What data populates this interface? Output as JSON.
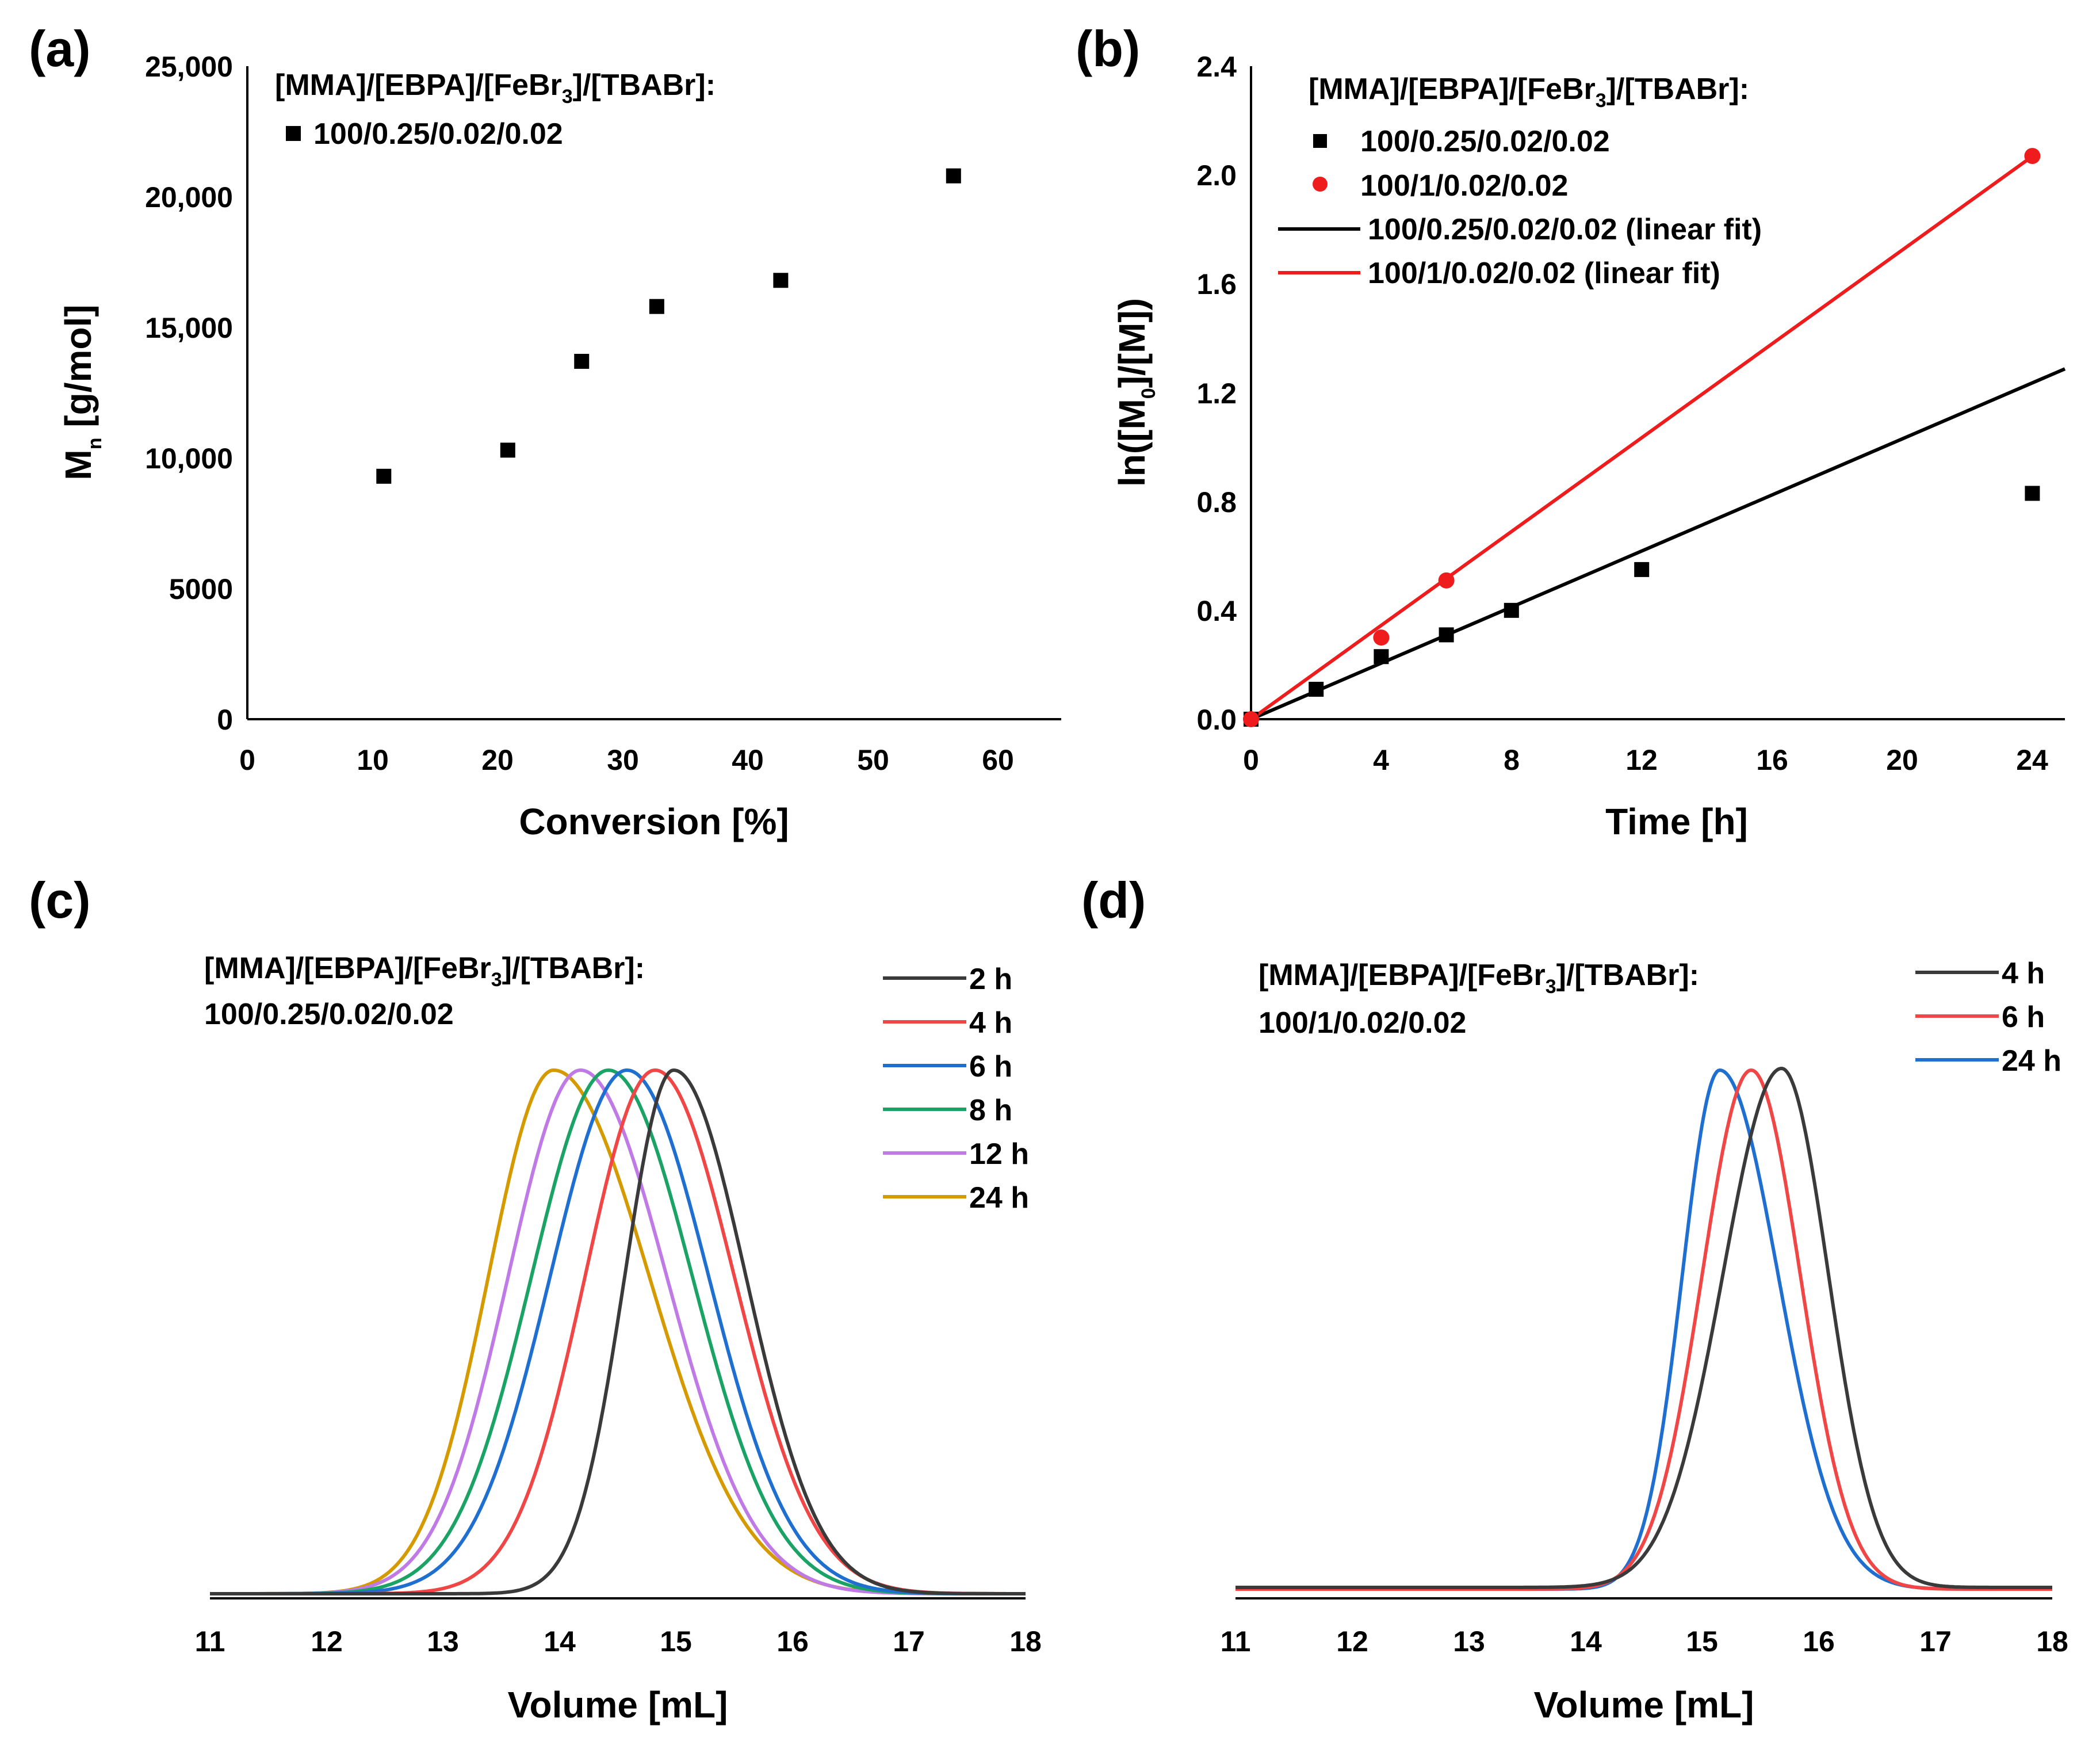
{
  "colors": {
    "black": "#000000",
    "red": "#ee1c1c",
    "c_black": "#3a3a3a",
    "c_red": "#f04646",
    "c_blue": "#1f6fd1",
    "c_green": "#1aa364",
    "c_violet": "#c07ae6",
    "c_gold": "#d49a00"
  },
  "chart_data": [
    {
      "id": "a",
      "panel_label": "(a)",
      "type": "scatter",
      "xlabel": "Conversion [%]",
      "ylabel": "Mn [g/mol]",
      "xlim": [
        0,
        65
      ],
      "ylim": [
        0,
        25000
      ],
      "xticks": [
        "0",
        "10",
        "20",
        "30",
        "40",
        "50",
        "60"
      ],
      "yticks": [
        "0",
        "5000",
        "10,000",
        "15,000",
        "20,000",
        "25,000"
      ],
      "legend_title": "[MMA]/[EBPA]/[FeBr3]/[TBABr]:",
      "series": [
        {
          "name": "100/0.25/0.02/0.02",
          "marker": "square",
          "x": [
            10.9,
            20.8,
            26.7,
            32.7,
            42.6,
            56.4
          ],
          "y": [
            9300,
            10300,
            13700,
            15800,
            16800,
            20800
          ]
        }
      ]
    },
    {
      "id": "b",
      "panel_label": "(b)",
      "type": "scatter",
      "xlabel": "Time [h]",
      "ylabel": "ln([M0]/[M])",
      "xlim": [
        0,
        25
      ],
      "ylim": [
        0,
        2.4
      ],
      "xticks": [
        "0",
        "4",
        "8",
        "12",
        "16",
        "20",
        "24"
      ],
      "yticks": [
        "0.0",
        "0.4",
        "0.8",
        "1.2",
        "1.6",
        "2.0",
        "2.4"
      ],
      "legend_title": "[MMA]/[EBPA]/[FeBr3]/[TBABr]:",
      "series": [
        {
          "name": "100/0.25/0.02/0.02",
          "marker": "square",
          "x": [
            0,
            2,
            4,
            6,
            8,
            12,
            24
          ],
          "y": [
            0.0,
            0.11,
            0.23,
            0.31,
            0.4,
            0.55,
            0.83
          ]
        },
        {
          "name": "100/1/0.02/0.02",
          "marker": "circle",
          "x": [
            0,
            4,
            6,
            24
          ],
          "y": [
            0.0,
            0.3,
            0.51,
            2.07
          ]
        }
      ],
      "fits": [
        {
          "name": "100/0.25/0.02/0.02 (linear fit)",
          "slope": 0.0515,
          "intercept": 0.0
        },
        {
          "name": "100/1/0.02/0.02 (linear fit)",
          "slope": 0.0862,
          "intercept": 0.0
        }
      ]
    },
    {
      "id": "c",
      "panel_label": "(c)",
      "type": "line",
      "xlabel": "Volume [mL]",
      "xlim": [
        11,
        18
      ],
      "xticks": [
        "11",
        "12",
        "13",
        "14",
        "15",
        "16",
        "17",
        "18"
      ],
      "ann_line1": "[MMA]/[EBPA]/[FeBr3]/[TBABr]:",
      "ann_line2": "100/0.25/0.02/0.02",
      "series": [
        {
          "name": "2 h",
          "peak": 14.98,
          "sl": 0.42,
          "sr": 0.62,
          "base": 0.0
        },
        {
          "name": "4 h",
          "peak": 14.82,
          "sl": 0.6,
          "sr": 0.68,
          "base": 0.0
        },
        {
          "name": "6 h",
          "peak": 14.58,
          "sl": 0.66,
          "sr": 0.7,
          "base": 0.0
        },
        {
          "name": "8 h",
          "peak": 14.42,
          "sl": 0.66,
          "sr": 0.72,
          "base": 0.0
        },
        {
          "name": "12 h",
          "peak": 14.18,
          "sl": 0.62,
          "sr": 0.74,
          "base": 0.0
        },
        {
          "name": "24 h",
          "peak": 13.95,
          "sl": 0.56,
          "sr": 0.82,
          "base": 0.0
        }
      ]
    },
    {
      "id": "d",
      "panel_label": "(d)",
      "type": "line",
      "xlabel": "Volume [mL]",
      "xlim": [
        11,
        18
      ],
      "xticks": [
        "11",
        "12",
        "13",
        "14",
        "15",
        "16",
        "17",
        "18"
      ],
      "ann_line1": "[MMA]/[EBPA]/[FeBr3]/[TBABr]:",
      "ann_line2": "100/1/0.02/0.02",
      "series": [
        {
          "name": "4 h",
          "peak": 15.68,
          "sl": 0.5,
          "sr": 0.4,
          "base": 0.01
        },
        {
          "name": "6 h",
          "peak": 15.42,
          "sl": 0.42,
          "sr": 0.42,
          "base": 0.0
        },
        {
          "name": "24 h",
          "peak": 15.15,
          "sl": 0.32,
          "sr": 0.5,
          "base": 0.0
        }
      ]
    }
  ]
}
